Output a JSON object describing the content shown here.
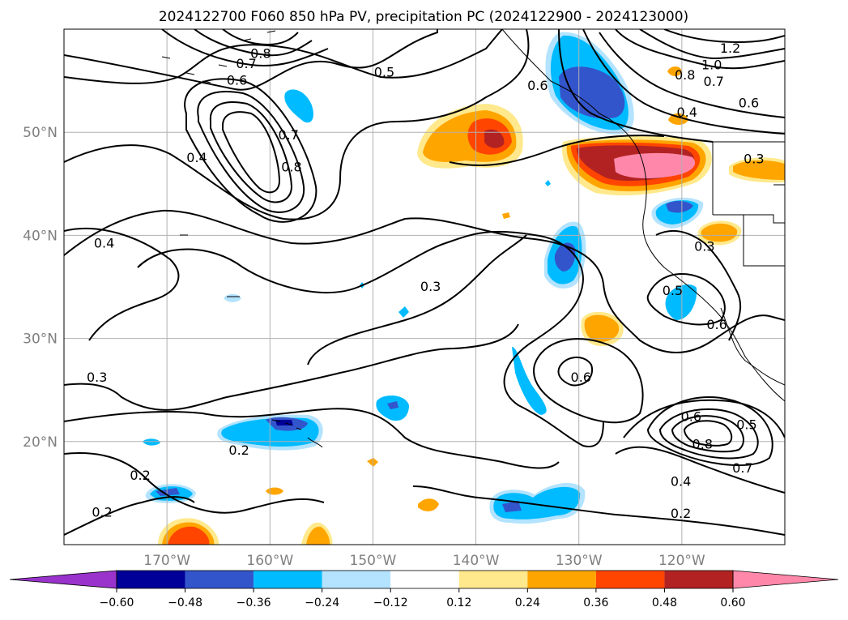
{
  "chart_data": {
    "type": "map",
    "title": "2024122700 F060 850 hPa PV, precipitation PC (2024122900 - 2024123000)",
    "lon_range": [
      -180,
      -110
    ],
    "lat_range": [
      10,
      60
    ],
    "x_ticks": [
      {
        "lon": -170,
        "label": "170°W"
      },
      {
        "lon": -160,
        "label": "160°W"
      },
      {
        "lon": -150,
        "label": "150°W"
      },
      {
        "lon": -140,
        "label": "140°W"
      },
      {
        "lon": -130,
        "label": "130°W"
      },
      {
        "lon": -120,
        "label": "120°W"
      }
    ],
    "y_ticks": [
      {
        "lat": 20,
        "label": "20°N"
      },
      {
        "lat": 30,
        "label": "30°N"
      },
      {
        "lat": 40,
        "label": "40°N"
      },
      {
        "lat": 50,
        "label": "50°N"
      }
    ],
    "grid": true,
    "colorbar": {
      "orientation": "horizontal",
      "extend": "both",
      "levels": [
        -0.6,
        -0.48,
        -0.36,
        -0.24,
        -0.12,
        0.12,
        0.24,
        0.36,
        0.48,
        0.6
      ],
      "tick_labels": [
        "−0.60",
        "−0.48",
        "−0.36",
        "−0.24",
        "−0.12",
        "0.12",
        "0.24",
        "0.36",
        "0.48",
        "0.60"
      ],
      "colors": [
        "#9933cc",
        "#000099",
        "#3355cc",
        "#00bbff",
        "#b3e3ff",
        "#ffffff",
        "#ffe98c",
        "#ffa500",
        "#ff4500",
        "#b22222",
        "#ff88aa"
      ]
    },
    "contour_labels": [
      {
        "text": "0.8",
        "lon": -160.9,
        "lat": 57.6
      },
      {
        "text": "0.7",
        "lon": -162.3,
        "lat": 56.6
      },
      {
        "text": "0.6",
        "lon": -163.2,
        "lat": 55.0
      },
      {
        "text": "0.5",
        "lon": -148.9,
        "lat": 55.8
      },
      {
        "text": "0.7",
        "lon": -158.2,
        "lat": 49.7
      },
      {
        "text": "0.8",
        "lon": -157.9,
        "lat": 46.6
      },
      {
        "text": "0.4",
        "lon": -167.1,
        "lat": 47.5
      },
      {
        "text": "0.4",
        "lon": -176.1,
        "lat": 39.2
      },
      {
        "text": "0.3",
        "lon": -144.4,
        "lat": 35.0
      },
      {
        "text": "0.3",
        "lon": -176.8,
        "lat": 26.2
      },
      {
        "text": "0.2",
        "lon": -163.0,
        "lat": 19.1
      },
      {
        "text": "0.2",
        "lon": -172.6,
        "lat": 16.7
      },
      {
        "text": "0.2",
        "lon": -176.3,
        "lat": 13.1
      },
      {
        "text": "1.2",
        "lon": -115.3,
        "lat": 58.1
      },
      {
        "text": "1.0",
        "lon": -117.1,
        "lat": 56.5
      },
      {
        "text": "0.8",
        "lon": -119.7,
        "lat": 55.5
      },
      {
        "text": "0.7",
        "lon": -116.9,
        "lat": 54.9
      },
      {
        "text": "0.6",
        "lon": -113.5,
        "lat": 52.8
      },
      {
        "text": "0.4",
        "lon": -119.5,
        "lat": 51.9
      },
      {
        "text": "0.6",
        "lon": -134.0,
        "lat": 54.5
      },
      {
        "text": "0.3",
        "lon": -113.0,
        "lat": 47.4
      },
      {
        "text": "0.3",
        "lon": -117.8,
        "lat": 38.9
      },
      {
        "text": "0.5",
        "lon": -120.9,
        "lat": 34.6
      },
      {
        "text": "0.6",
        "lon": -116.6,
        "lat": 31.3
      },
      {
        "text": "0.6",
        "lon": -129.8,
        "lat": 26.2
      },
      {
        "text": "0.6",
        "lon": -119.1,
        "lat": 22.4
      },
      {
        "text": "0.5",
        "lon": -113.7,
        "lat": 21.6
      },
      {
        "text": "0.8",
        "lon": -118.0,
        "lat": 19.7
      },
      {
        "text": "0.7",
        "lon": -114.1,
        "lat": 17.4
      },
      {
        "text": "0.4",
        "lon": -120.1,
        "lat": 16.1
      },
      {
        "text": "0.2",
        "lon": -120.1,
        "lat": 13.0
      }
    ]
  }
}
